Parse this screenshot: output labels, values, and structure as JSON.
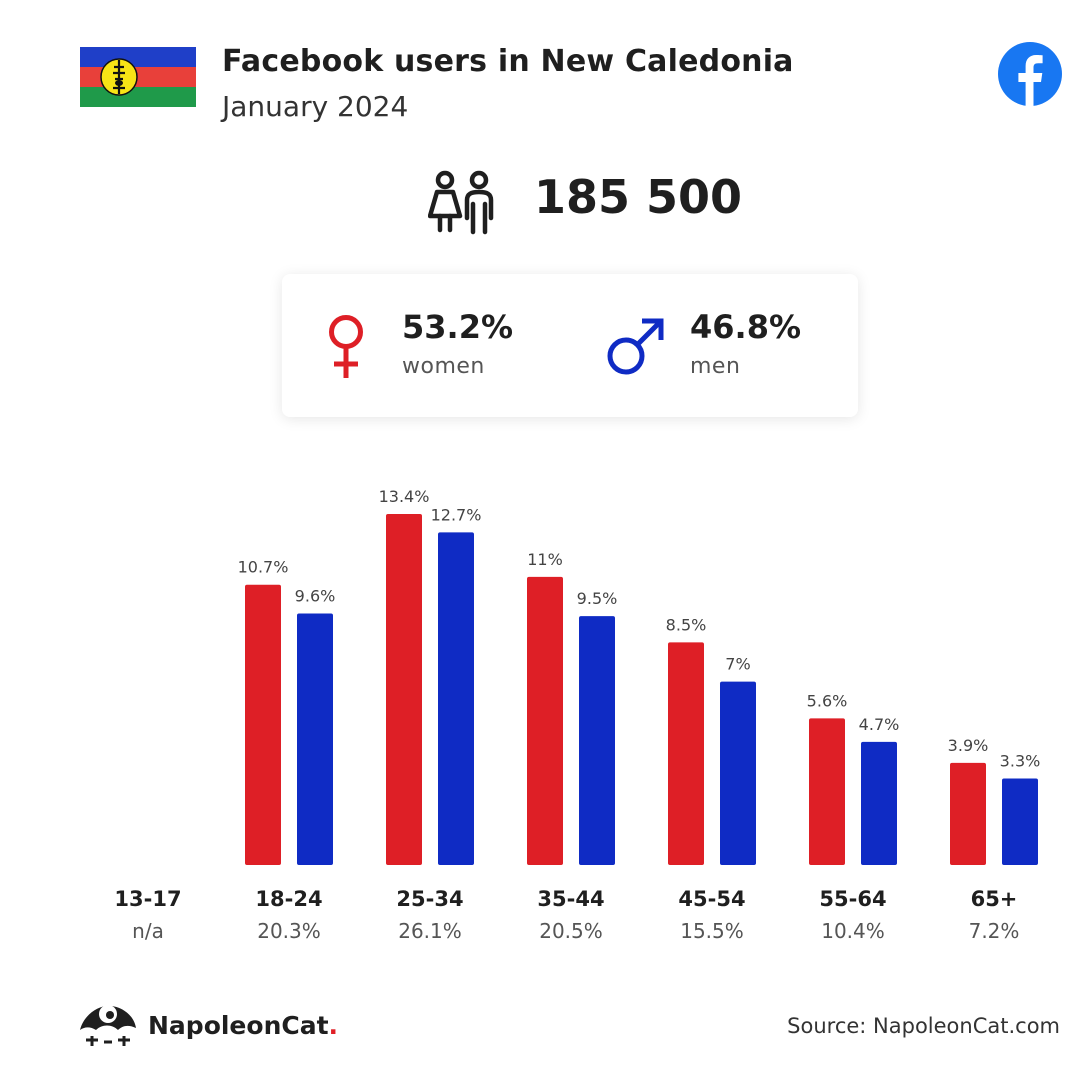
{
  "header": {
    "title": "Facebook users in New Caledonia",
    "subtitle": "January 2024"
  },
  "summary": {
    "total_users": "185 500"
  },
  "gender": {
    "women_pct": "53.2%",
    "women_label": "women",
    "men_pct": "46.8%",
    "men_label": "men"
  },
  "colors": {
    "women": "#de1f26",
    "men": "#0f2bc4",
    "facebook": "#1877f2"
  },
  "chart_data": {
    "type": "bar",
    "categories": [
      "13-17",
      "18-24",
      "25-34",
      "35-44",
      "45-54",
      "55-64",
      "65+"
    ],
    "category_totals": [
      "n/a",
      "20.3%",
      "26.1%",
      "20.5%",
      "15.5%",
      "10.4%",
      "7.2%"
    ],
    "series": [
      {
        "values": [
          null,
          10.7,
          13.4,
          11,
          8.5,
          5.6,
          3.9
        ],
        "labels": [
          "",
          "10.7%",
          "13.4%",
          "11%",
          "8.5%",
          "5.6%",
          "3.9%"
        ]
      },
      {
        "values": [
          null,
          9.6,
          12.7,
          9.5,
          7,
          4.7,
          3.3
        ],
        "labels": [
          "",
          "9.6%",
          "12.7%",
          "9.5%",
          "7%",
          "4.7%",
          "3.3%"
        ]
      }
    ],
    "ylim": [
      0,
      13.4
    ],
    "grid": false
  },
  "footer": {
    "brand": "NapoleonCat",
    "brand_dot": ".",
    "source": "Source: NapoleonCat.com"
  }
}
